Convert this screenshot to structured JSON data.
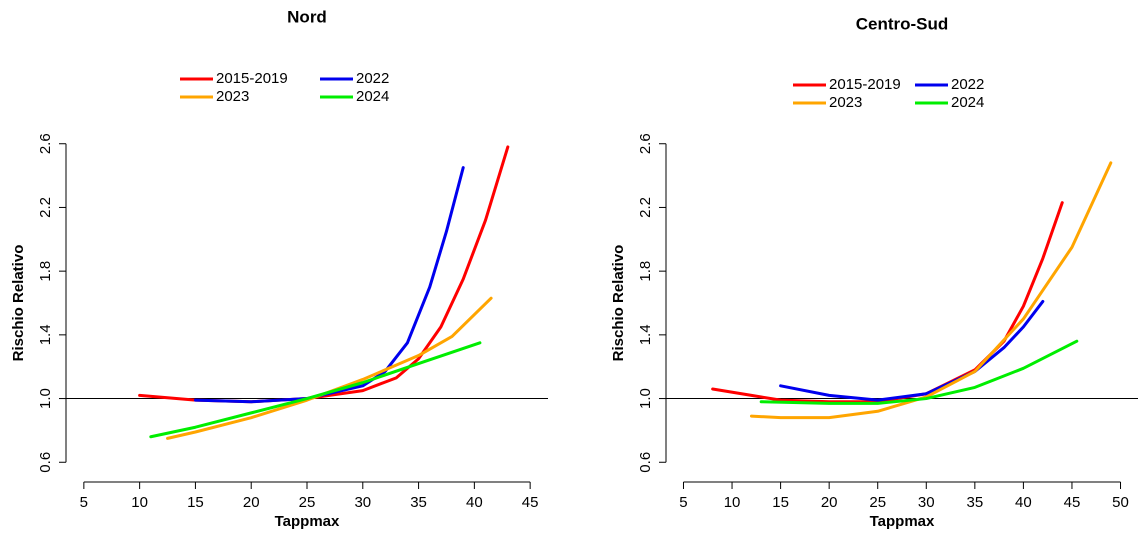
{
  "chart_data": [
    {
      "type": "line",
      "title": "Nord",
      "x_label": "Tappmax",
      "y_label": "Rischio Relativo",
      "xlim": [
        3.4,
        46.6
      ],
      "ylim": [
        0.52,
        2.68
      ],
      "xticks": [
        5,
        10,
        15,
        20,
        25,
        30,
        35,
        40,
        45
      ],
      "yticks": [
        0.6,
        {
          "value": 1,
          "label": "1.0"
        },
        1.4,
        1.8,
        2.2,
        2.6
      ],
      "hline": 1,
      "series": [
        {
          "name": "2015-2019",
          "color": "#ff0000",
          "x": [
            10,
            15,
            20,
            25,
            30,
            33,
            35,
            37,
            39,
            41,
            43
          ],
          "values": [
            1.02,
            0.99,
            0.98,
            1.0,
            1.05,
            1.13,
            1.25,
            1.45,
            1.75,
            2.12,
            2.58
          ]
        },
        {
          "name": "2022",
          "color": "#0000ee",
          "x": [
            15,
            20,
            25,
            30,
            32,
            34,
            36,
            37.5,
            39
          ],
          "values": [
            0.99,
            0.98,
            1.0,
            1.08,
            1.17,
            1.35,
            1.7,
            2.05,
            2.45
          ]
        },
        {
          "name": "2023",
          "color": "#ffa500",
          "x": [
            12.5,
            15,
            20,
            25,
            30,
            35,
            38,
            41.5
          ],
          "values": [
            0.75,
            0.79,
            0.88,
            0.99,
            1.12,
            1.27,
            1.39,
            1.63
          ]
        },
        {
          "name": "2024",
          "color": "#00ee00",
          "x": [
            11,
            15,
            20,
            25,
            30,
            35,
            40.5
          ],
          "values": [
            0.76,
            0.82,
            0.91,
            1.0,
            1.1,
            1.22,
            1.35
          ]
        }
      ]
    },
    {
      "type": "line",
      "title": "Centro-Sud",
      "x_label": "Tappmax",
      "y_label": "Rischio Relativo",
      "xlim": [
        3.2,
        51.8
      ],
      "ylim": [
        0.52,
        2.68
      ],
      "xticks": [
        5,
        10,
        15,
        20,
        25,
        30,
        35,
        40,
        45,
        50
      ],
      "yticks": [
        0.6,
        {
          "value": 1,
          "label": "1.0"
        },
        1.4,
        1.8,
        2.2,
        2.6
      ],
      "hline": 1,
      "series": [
        {
          "name": "2015-2019",
          "color": "#ff0000",
          "x": [
            8,
            12,
            15,
            20,
            25,
            30,
            35,
            38,
            40,
            42,
            44
          ],
          "values": [
            1.06,
            1.02,
            0.99,
            0.98,
            0.98,
            1.03,
            1.18,
            1.36,
            1.58,
            1.88,
            2.23
          ]
        },
        {
          "name": "2022",
          "color": "#0000ee",
          "x": [
            15,
            20,
            25,
            30,
            35,
            38,
            40,
            42
          ],
          "values": [
            1.08,
            1.02,
            0.99,
            1.03,
            1.17,
            1.32,
            1.45,
            1.61
          ]
        },
        {
          "name": "2023",
          "color": "#ffa500",
          "x": [
            12,
            15,
            20,
            25,
            30,
            35,
            40,
            45,
            49
          ],
          "values": [
            0.89,
            0.88,
            0.88,
            0.92,
            1.01,
            1.17,
            1.5,
            1.95,
            2.48
          ]
        },
        {
          "name": "2024",
          "color": "#00ee00",
          "x": [
            13,
            20,
            25,
            30,
            35,
            40,
            45.5
          ],
          "values": [
            0.98,
            0.97,
            0.97,
            1.0,
            1.07,
            1.19,
            1.36
          ]
        }
      ]
    }
  ]
}
